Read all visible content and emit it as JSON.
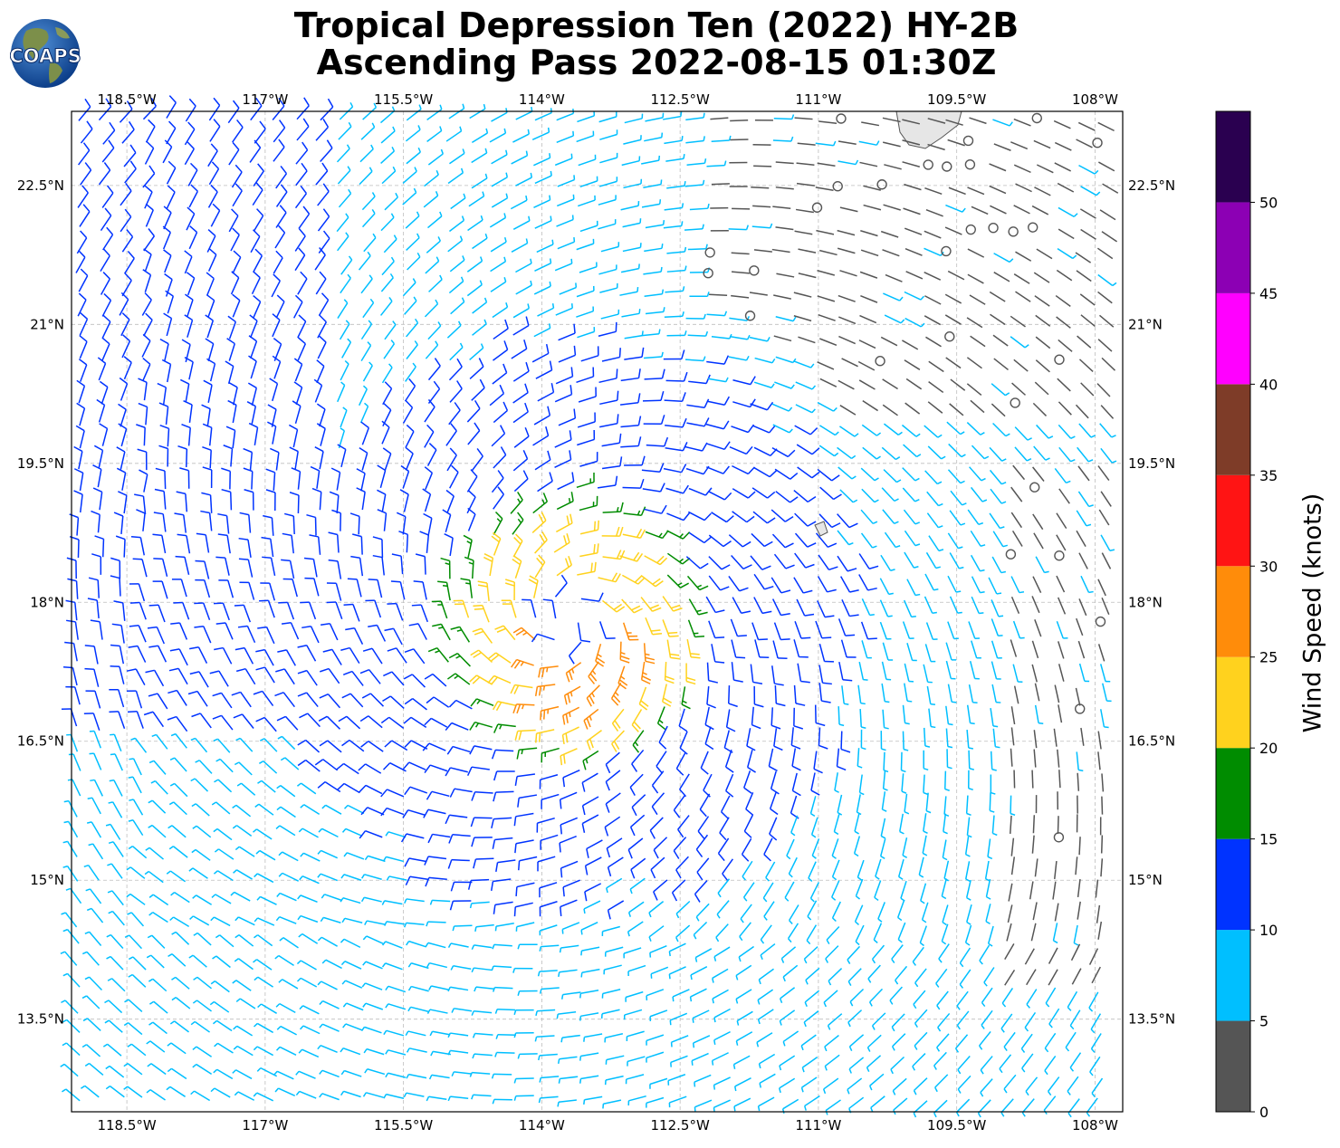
{
  "logo": {
    "text": "COAPS",
    "icon": "globe-icon"
  },
  "title": {
    "line1": "Tropical Depression Ten (2022) HY-2B",
    "line2": "Ascending Pass 2022-08-15 01:30Z"
  },
  "map": {
    "lon_range": [
      -119.1,
      -107.7
    ],
    "lat_range": [
      12.5,
      23.3
    ],
    "lon_ticks": [
      {
        "value": -118.5,
        "label": "118.5°W"
      },
      {
        "value": -117.0,
        "label": "117°W"
      },
      {
        "value": -115.5,
        "label": "115.5°W"
      },
      {
        "value": -114.0,
        "label": "114°W"
      },
      {
        "value": -112.5,
        "label": "112.5°W"
      },
      {
        "value": -111.0,
        "label": "111°W"
      },
      {
        "value": -109.5,
        "label": "109.5°W"
      },
      {
        "value": -108.0,
        "label": "108°W"
      }
    ],
    "lat_ticks": [
      {
        "value": 22.5,
        "label": "22.5°N"
      },
      {
        "value": 21.0,
        "label": "21°N"
      },
      {
        "value": 19.5,
        "label": "19.5°N"
      },
      {
        "value": 18.0,
        "label": "18°N"
      },
      {
        "value": 16.5,
        "label": "16.5°N"
      },
      {
        "value": 15.0,
        "label": "15°N"
      },
      {
        "value": 13.5,
        "label": "13.5°N"
      }
    ],
    "gridlines": "dashed",
    "storm_center": {
      "lon": -113.7,
      "lat": 17.8
    },
    "land": "Baja California tip (upper right)"
  },
  "colorbar": {
    "label": "Wind Speed (knots)",
    "unit": "knots",
    "ticks": [
      0,
      5,
      10,
      15,
      20,
      25,
      30,
      35,
      40,
      45,
      50
    ],
    "bins": [
      {
        "min": 0,
        "max": 5,
        "color": "#555555"
      },
      {
        "min": 5,
        "max": 10,
        "color": "#00bfff"
      },
      {
        "min": 10,
        "max": 15,
        "color": "#0033ff"
      },
      {
        "min": 15,
        "max": 20,
        "color": "#008c00"
      },
      {
        "min": 20,
        "max": 25,
        "color": "#ffd21e"
      },
      {
        "min": 25,
        "max": 30,
        "color": "#ff8c0a"
      },
      {
        "min": 30,
        "max": 35,
        "color": "#ff1414"
      },
      {
        "min": 35,
        "max": 40,
        "color": "#7e3c28"
      },
      {
        "min": 40,
        "max": 45,
        "color": "#ff00ff"
      },
      {
        "min": 45,
        "max": 50,
        "color": "#8c00b4"
      },
      {
        "min": 50,
        "max": 55,
        "color": "#2a0050"
      }
    ]
  }
}
